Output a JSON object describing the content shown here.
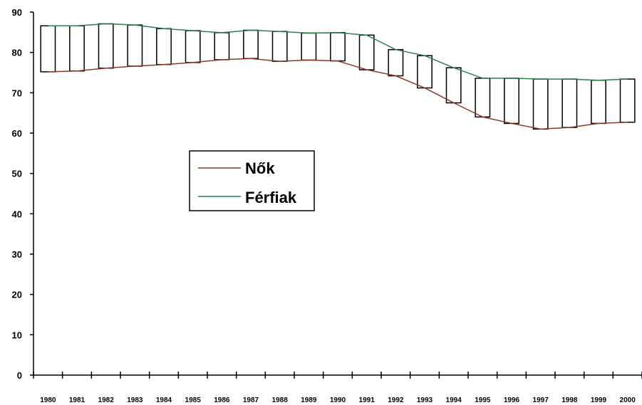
{
  "chart_data": {
    "type": "line",
    "title": "",
    "xlabel": "",
    "ylabel": "",
    "ylim": [
      0,
      90
    ],
    "yticks": [
      0,
      10,
      20,
      30,
      40,
      50,
      60,
      70,
      80,
      90
    ],
    "grid": false,
    "legend_position": "center-left",
    "categories": [
      "1980",
      "1981",
      "1982",
      "1983",
      "1984",
      "1985",
      "1986",
      "1987",
      "1988",
      "1989",
      "1990",
      "1991",
      "1992",
      "1993",
      "1994",
      "1995",
      "1996",
      "1997",
      "1998",
      "1999",
      "2000"
    ],
    "series": [
      {
        "name": "Nők",
        "color": "#8b3a2a",
        "values": [
          75.2,
          75.4,
          76.1,
          76.6,
          77.0,
          77.5,
          78.2,
          78.5,
          77.8,
          78.1,
          77.9,
          75.7,
          74.2,
          71.2,
          67.5,
          64.0,
          62.4,
          61.0,
          61.4,
          62.4,
          62.7
        ]
      },
      {
        "name": "Férfiak",
        "color": "#2e7d4f",
        "values": [
          86.6,
          86.6,
          87.1,
          86.8,
          85.9,
          85.4,
          84.9,
          85.5,
          85.2,
          84.8,
          84.9,
          84.3,
          80.7,
          79.2,
          76.2,
          73.6,
          73.6,
          73.4,
          73.4,
          73.1,
          73.4
        ]
      }
    ]
  }
}
